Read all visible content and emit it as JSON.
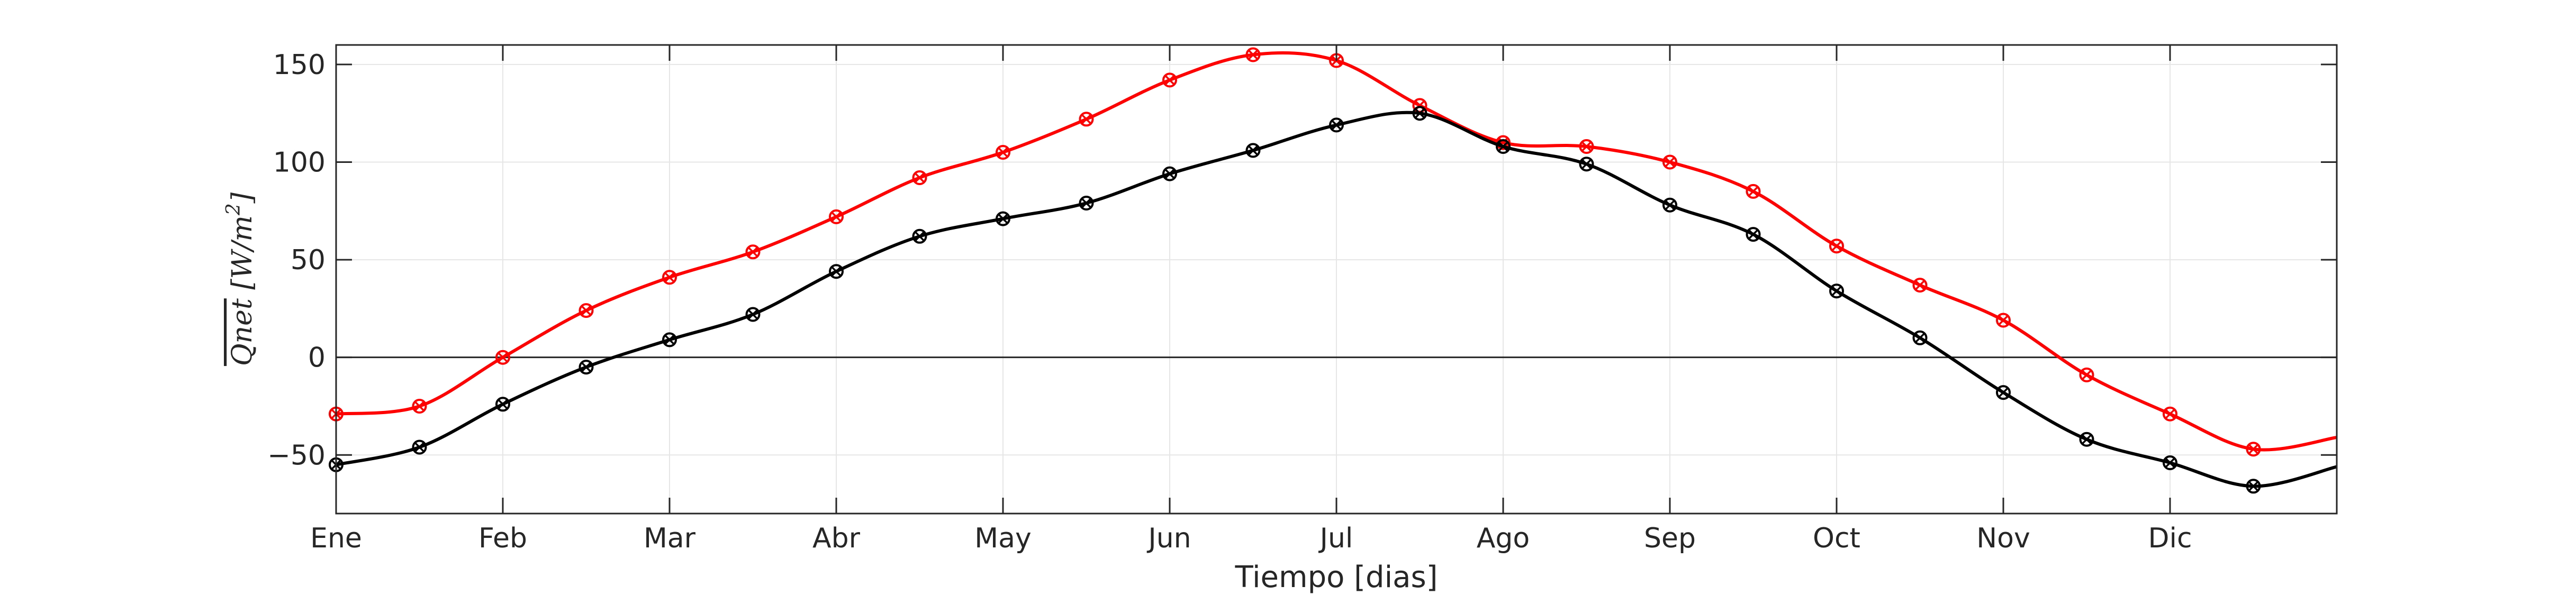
{
  "chart_data": {
    "type": "line",
    "title": "",
    "xlabel": "Tiempo [dias]",
    "ylabel": {
      "overlined": "Qnet",
      "units": "[W/m",
      "exponent": "2",
      "close": "]"
    },
    "x_tick_labels": [
      "Ene",
      "Feb",
      "Mar",
      "Abr",
      "May",
      "Jun",
      "Jul",
      "Ago",
      "Sep",
      "Oct",
      "Nov",
      "Dic"
    ],
    "x_range": [
      0,
      12
    ],
    "ylim": [
      -80,
      160
    ],
    "y_ticks": [
      -50,
      0,
      50,
      100,
      150
    ],
    "y_tick_labels": [
      "−50",
      "0",
      "50",
      "100",
      "150"
    ],
    "grid": true,
    "zero_line": true,
    "marker": "circle-x",
    "series": [
      {
        "color": "#ff0000",
        "x": [
          0,
          0.5,
          1,
          1.5,
          2,
          2.5,
          3,
          3.5,
          4,
          4.5,
          5,
          5.5,
          6,
          6.5,
          7,
          7.5,
          8,
          8.5,
          9,
          9.5,
          10,
          10.5,
          11,
          11.5
        ],
        "values": [
          -29,
          -25,
          0,
          24,
          41,
          54,
          72,
          92,
          105,
          122,
          142,
          155,
          152,
          129,
          110,
          108,
          100,
          85,
          57,
          37,
          19,
          -9,
          -29,
          -47
        ],
        "tail": -41
      },
      {
        "color": "#000000",
        "x": [
          0,
          0.5,
          1,
          1.5,
          2,
          2.5,
          3,
          3.5,
          4,
          4.5,
          5,
          5.5,
          6,
          6.5,
          7,
          7.5,
          8,
          8.5,
          9,
          9.5,
          10,
          10.5,
          11,
          11.5
        ],
        "values": [
          -55,
          -46,
          -24,
          -5,
          9,
          22,
          44,
          62,
          71,
          79,
          94,
          106,
          119,
          125,
          108,
          99,
          78,
          63,
          34,
          10,
          -18,
          -42,
          -54,
          -66
        ],
        "tail": -56
      }
    ]
  }
}
